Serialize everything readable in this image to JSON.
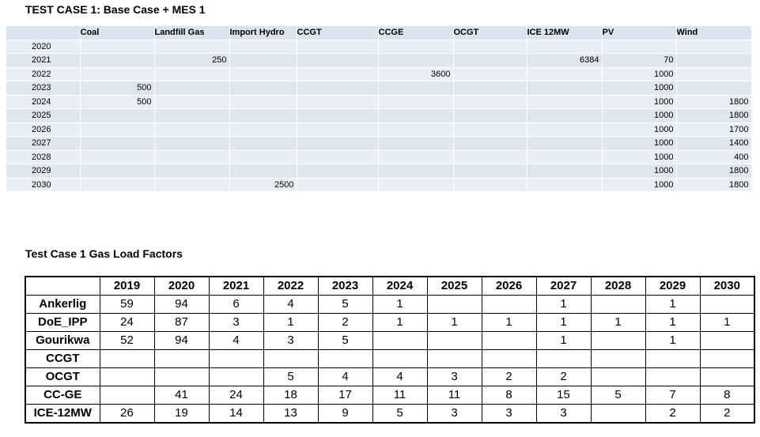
{
  "test_case_title": "TEST CASE 1: Base Case + MES 1",
  "top_table": {
    "headers": [
      "",
      "Coal",
      "Landfill Gas",
      "Import Hydro",
      "CCGT",
      "CCGE",
      "OCGT",
      "ICE 12MW",
      "PV",
      "Wind"
    ],
    "rows": [
      [
        "2020",
        "",
        "",
        "",
        "",
        "",
        "",
        "",
        "",
        ""
      ],
      [
        "2021",
        "",
        "250",
        "",
        "",
        "",
        "",
        "6384",
        "70",
        ""
      ],
      [
        "2022",
        "",
        "",
        "",
        "",
        "3600",
        "",
        "",
        "1000",
        ""
      ],
      [
        "2023",
        "500",
        "",
        "",
        "",
        "",
        "",
        "",
        "1000",
        ""
      ],
      [
        "2024",
        "500",
        "",
        "",
        "",
        "",
        "",
        "",
        "1000",
        "1800"
      ],
      [
        "2025",
        "",
        "",
        "",
        "",
        "",
        "",
        "",
        "1000",
        "1800"
      ],
      [
        "2026",
        "",
        "",
        "",
        "",
        "",
        "",
        "",
        "1000",
        "1700"
      ],
      [
        "2027",
        "",
        "",
        "",
        "",
        "",
        "",
        "",
        "1000",
        "1400"
      ],
      [
        "2028",
        "",
        "",
        "",
        "",
        "",
        "",
        "",
        "1000",
        "400"
      ],
      [
        "2029",
        "",
        "",
        "",
        "",
        "",
        "",
        "",
        "1000",
        "1800"
      ],
      [
        "2030",
        "",
        "",
        "2500",
        "",
        "",
        "",
        "",
        "1000",
        "1800"
      ]
    ]
  },
  "load_factors_title": "Test Case 1 Gas Load Factors",
  "load_factors": {
    "years": [
      "2019",
      "2020",
      "2021",
      "2022",
      "2023",
      "2024",
      "2025",
      "2026",
      "2027",
      "2028",
      "2029",
      "2030"
    ],
    "rows": [
      {
        "name": "Ankerlig",
        "values": [
          "59",
          "94",
          "6",
          "4",
          "5",
          "1",
          "",
          "",
          "1",
          "",
          "1",
          ""
        ]
      },
      {
        "name": "DoE_IPP",
        "values": [
          "24",
          "87",
          "3",
          "1",
          "2",
          "1",
          "1",
          "1",
          "1",
          "1",
          "1",
          "1"
        ]
      },
      {
        "name": "Gourikwa",
        "values": [
          "52",
          "94",
          "4",
          "3",
          "5",
          "",
          "",
          "",
          "1",
          "",
          "1",
          ""
        ]
      },
      {
        "name": "CCGT",
        "values": [
          "",
          "",
          "",
          "",
          "",
          "",
          "",
          "",
          "",
          "",
          "",
          ""
        ]
      },
      {
        "name": "OCGT",
        "values": [
          "",
          "",
          "",
          "5",
          "4",
          "4",
          "3",
          "2",
          "2",
          "",
          "",
          ""
        ]
      },
      {
        "name": "CC-GE",
        "values": [
          "",
          "41",
          "24",
          "18",
          "17",
          "11",
          "11",
          "8",
          "15",
          "5",
          "7",
          "8"
        ]
      },
      {
        "name": "ICE-12MW",
        "values": [
          "26",
          "19",
          "14",
          "13",
          "9",
          "5",
          "3",
          "3",
          "3",
          "",
          "2",
          "2"
        ]
      }
    ]
  }
}
